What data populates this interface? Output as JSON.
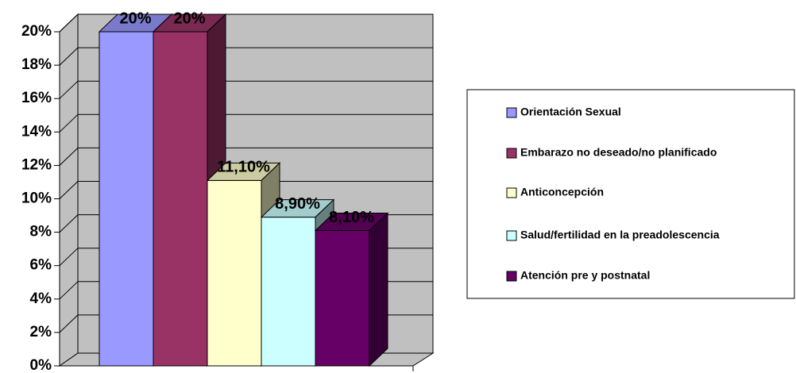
{
  "chart_data": {
    "type": "bar3d",
    "categories": [
      null
    ],
    "series": [
      {
        "name": "Orientación Sexual",
        "color": "#9999ff",
        "values": [
          20
        ],
        "value_labels": [
          "20%"
        ]
      },
      {
        "name": "Embarazo no deseado/no planificado",
        "color": "#993366",
        "values": [
          20
        ],
        "value_labels": [
          "20%"
        ]
      },
      {
        "name": "Anticoncepción",
        "color": "#ffffcc",
        "values": [
          11.1
        ],
        "value_labels": [
          "11,10%"
        ]
      },
      {
        "name": "Salud/fertilidad en la preadolescencia",
        "color": "#ccffff",
        "values": [
          8.9
        ],
        "value_labels": [
          "8,90%"
        ]
      },
      {
        "name": "Atención pre y postnatal",
        "color": "#660066",
        "values": [
          8.1
        ],
        "value_labels": [
          "8,10%"
        ]
      }
    ],
    "ylim": [
      0,
      20
    ],
    "yticks": [
      {
        "value": 0,
        "label": "0%"
      },
      {
        "value": 2,
        "label": "2%"
      },
      {
        "value": 4,
        "label": "4%"
      },
      {
        "value": 6,
        "label": "6%"
      },
      {
        "value": 8,
        "label": "8%"
      },
      {
        "value": 10,
        "label": "10%"
      },
      {
        "value": 12,
        "label": "12%"
      },
      {
        "value": 14,
        "label": "14%"
      },
      {
        "value": 16,
        "label": "16%"
      },
      {
        "value": 18,
        "label": "18%"
      },
      {
        "value": 20,
        "label": "20%"
      }
    ],
    "grid": true,
    "legend": "right"
  }
}
